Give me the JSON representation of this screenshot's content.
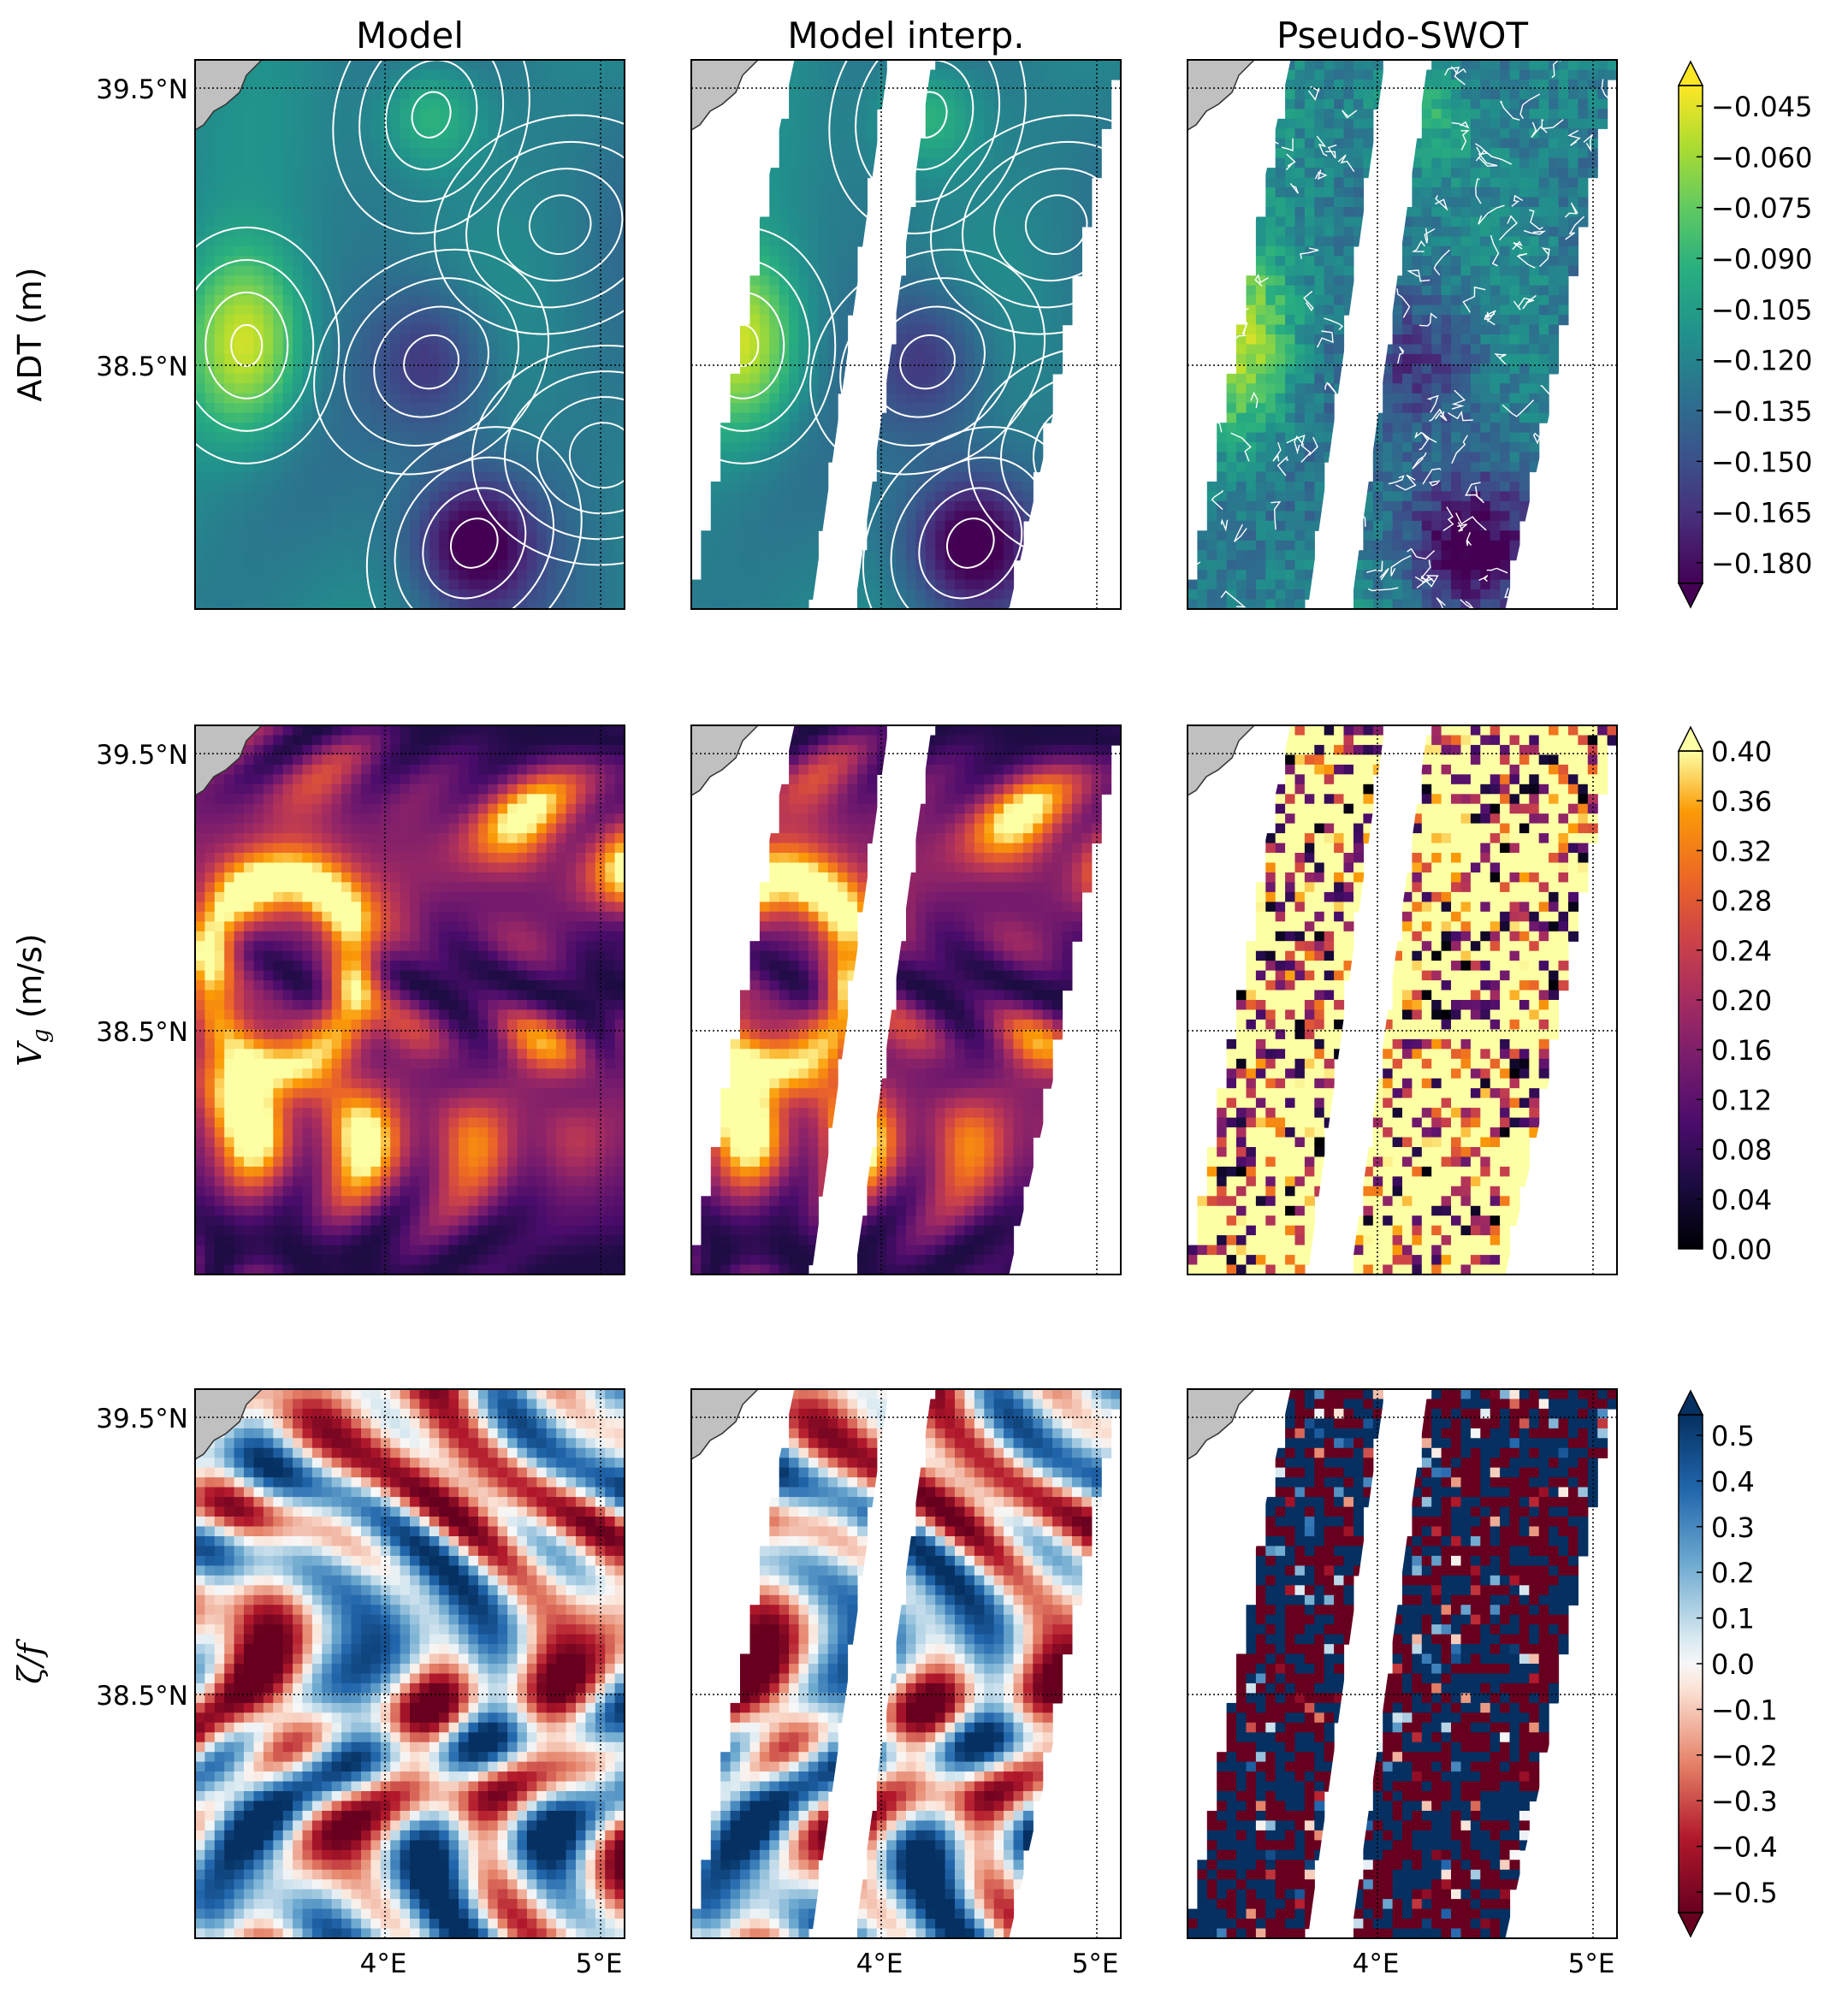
{
  "columns": [
    "Model",
    "Model interp.",
    "Pseudo-SWOT"
  ],
  "chart_data": [
    {
      "type": "heatmap",
      "row_label": "ADT (m)",
      "panels": [
        "Model",
        "Model interp.",
        "Pseudo-SWOT"
      ],
      "colormap": "viridis",
      "contours": true,
      "colorbar": {
        "ticks": [
          "−0.045",
          "−0.060",
          "−0.075",
          "−0.090",
          "−0.105",
          "−0.120",
          "−0.135",
          "−0.150",
          "−0.165",
          "−0.180"
        ],
        "range": [
          -0.18,
          -0.045
        ],
        "extend": "both"
      },
      "y_ticks": [
        "39.5°N",
        "38.5°N"
      ],
      "x_ticks": []
    },
    {
      "type": "heatmap",
      "row_label_main": "V",
      "row_label_sub": "g",
      "row_label_unit": " (m/s)",
      "panels": [
        "Model",
        "Model interp.",
        "Pseudo-SWOT"
      ],
      "colormap": "inferno",
      "contours": false,
      "colorbar": {
        "ticks": [
          "0.40",
          "0.36",
          "0.32",
          "0.28",
          "0.24",
          "0.20",
          "0.16",
          "0.12",
          "0.08",
          "0.04",
          "0.00"
        ],
        "range": [
          0.0,
          0.4
        ],
        "extend": "max"
      },
      "y_ticks": [
        "39.5°N",
        "38.5°N"
      ],
      "x_ticks": []
    },
    {
      "type": "heatmap",
      "row_label": "ζ/f",
      "panels": [
        "Model",
        "Model interp.",
        "Pseudo-SWOT"
      ],
      "colormap": "RdBu",
      "contours": false,
      "colorbar": {
        "ticks": [
          "0.5",
          "0.4",
          "0.3",
          "0.2",
          "0.1",
          "0.0",
          "−0.1",
          "−0.2",
          "−0.3",
          "−0.4",
          "−0.5"
        ],
        "range": [
          -0.5,
          0.5
        ],
        "extend": "both"
      },
      "y_ticks": [
        "39.5°N",
        "38.5°N"
      ],
      "x_ticks": [
        "4°E",
        "5°E"
      ]
    }
  ]
}
